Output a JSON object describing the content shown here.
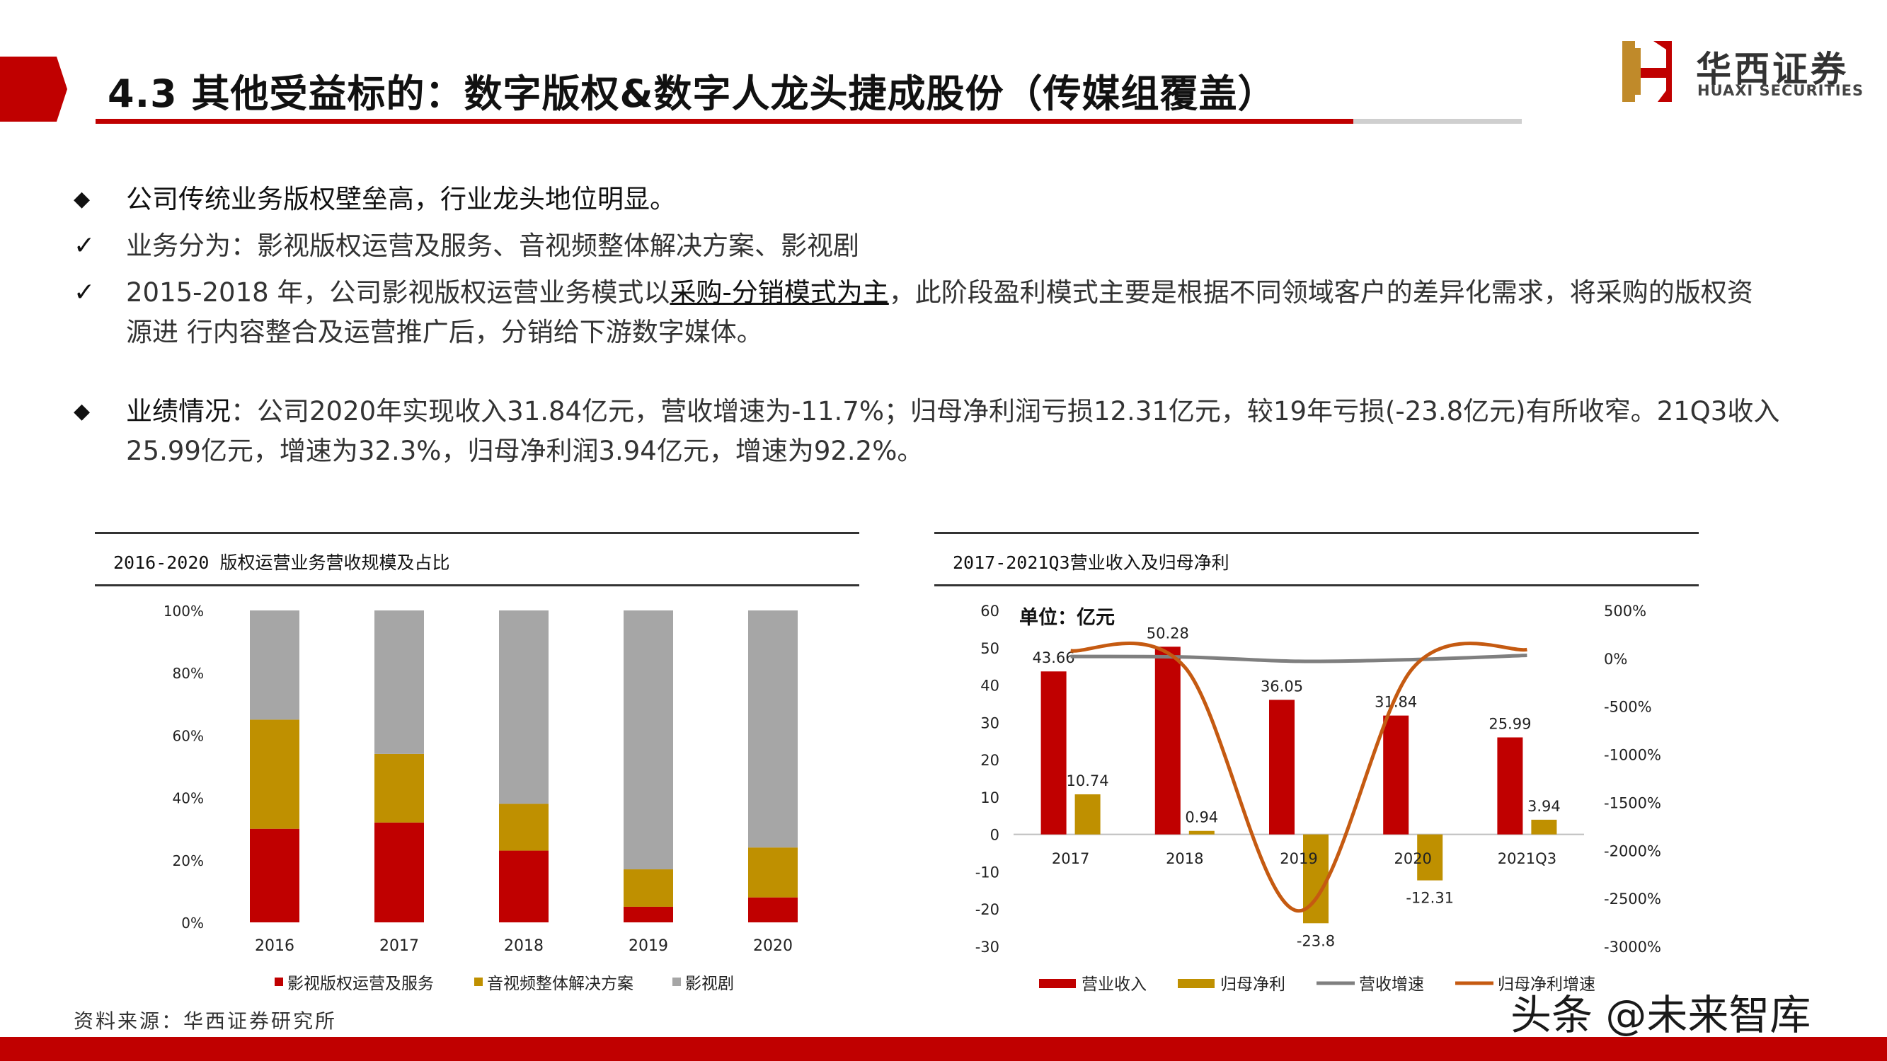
{
  "header": {
    "title": "4.3 其他受益标的：数字版权&数字人龙头捷成股份（传媒组覆盖）",
    "logo_cn": "华西证券",
    "logo_en": "HUAXI SECURITIES"
  },
  "body": {
    "p1": "公司传统业务版权壁垒高，行业龙头地位明显。",
    "p2": "业务分为：影视版权运营及服务、音视频整体解决方案、影视剧",
    "p3_pre": "2015-2018 年，公司影视版权运营业务模式以",
    "p3_emph": "采购-分销模式为主",
    "p3_post": "，此阶段盈利模式主要是根据不同领域客户的差异化需求，将采购的版权资",
    "p3_line2": "源进 行内容整合及运营推广后，分销给下游数字媒体。",
    "p4_label": "业绩情况",
    "p4_text": "：公司2020年实现收入31.84亿元，营收增速为-11.7%；归母净利润亏损12.31亿元，较19年亏损(-23.8亿元)有所收窄。21Q3收入",
    "p4_line2": "25.99亿元，增速为32.3%，归母净利润3.94亿元，增速为92.2%。"
  },
  "source": "资料来源：华西证券研究所",
  "watermark": "头条 @未来智库",
  "chart_data": [
    {
      "type": "bar",
      "stacked": true,
      "title": "2016-2020 版权运营业务营收规模及占比",
      "categories": [
        "2016",
        "2017",
        "2018",
        "2019",
        "2020"
      ],
      "yticks": [
        "0%",
        "20%",
        "40%",
        "60%",
        "80%",
        "100%"
      ],
      "ylim": [
        0,
        100
      ],
      "legend_position": "bottom",
      "series": [
        {
          "name": "影视版权运营及服务",
          "values": [
            30,
            32,
            23,
            5,
            8
          ],
          "color": "#c00000"
        },
        {
          "name": "音视频整体解决方案",
          "values": [
            35,
            22,
            15,
            12,
            16
          ],
          "color": "#bf9000"
        },
        {
          "name": "影视剧",
          "values": [
            35,
            46,
            62,
            83,
            76
          ],
          "color": "#a6a6a6"
        }
      ]
    },
    {
      "type": "bar",
      "title": "2017-2021Q3营业收入及归母净利",
      "unit_label": "单位：亿元",
      "categories": [
        "2017",
        "2018",
        "2019",
        "2020",
        "2021Q3"
      ],
      "yticks_left": [
        "-30",
        "-20",
        "-10",
        "0",
        "10",
        "20",
        "30",
        "40",
        "50",
        "60"
      ],
      "ylim_left": [
        -30,
        60
      ],
      "yticks_right": [
        "-3000%",
        "-2500%",
        "-2000%",
        "-1500%",
        "-1000%",
        "-500%",
        "0%",
        "500%"
      ],
      "ylim_right": [
        -3000,
        500
      ],
      "legend_position": "bottom",
      "series": [
        {
          "name": "营业收入",
          "values": [
            43.66,
            50.28,
            36.05,
            31.84,
            25.99
          ],
          "labels": [
            "43.66",
            "50.28",
            "36.05",
            "31.84",
            "25.99"
          ],
          "color": "#c00000",
          "axis": "left"
        },
        {
          "name": "归母净利",
          "values": [
            10.74,
            0.94,
            -23.8,
            -12.31,
            3.94
          ],
          "labels": [
            "10.74",
            "0.94",
            "-23.8",
            "-12.31",
            "3.94"
          ],
          "color": "#bf9000",
          "axis": "left"
        },
        {
          "name": "营收增速",
          "type": "line",
          "values": [
            20,
            15,
            -30,
            -12,
            32
          ],
          "color": "#7f7f7f",
          "axis": "right"
        },
        {
          "name": "归母净利增速",
          "type": "line",
          "values": [
            80,
            -90,
            -2630,
            -100,
            92
          ],
          "color": "#c55a11",
          "axis": "right"
        }
      ]
    }
  ]
}
